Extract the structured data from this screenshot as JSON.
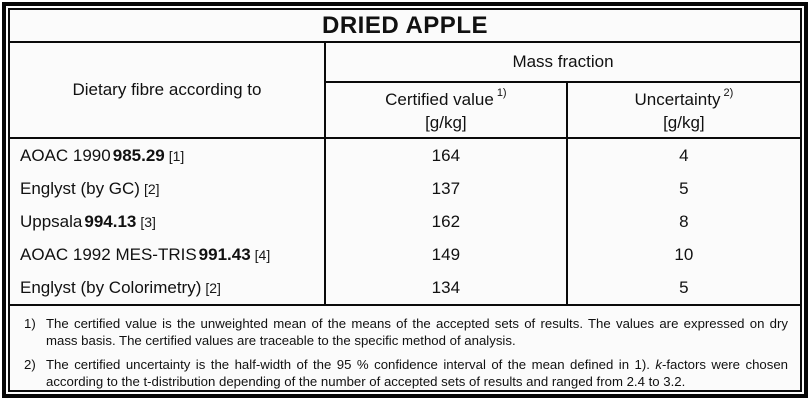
{
  "title": "DRIED APPLE",
  "table": {
    "col1_header": "Dietary fibre according to",
    "group_header": "Mass fraction",
    "col2_header": "Certified value",
    "col2_sup": "1)",
    "col2_unit": "[g/kg]",
    "col3_header": "Uncertainty",
    "col3_sup": "2)",
    "col3_unit": "[g/kg]",
    "rows": [
      {
        "method_prefix": "AOAC 1990",
        "method_bold": "985.29",
        "method_ref": "[1]",
        "certified_value": "164",
        "uncertainty": "4"
      },
      {
        "method_prefix": "Englyst (by GC)",
        "method_bold": "",
        "method_ref": "[2]",
        "certified_value": "137",
        "uncertainty": "5"
      },
      {
        "method_prefix": "Uppsala",
        "method_bold": "994.13",
        "method_ref": "[3]",
        "certified_value": "162",
        "uncertainty": "8"
      },
      {
        "method_prefix": "AOAC 1992 MES-TRIS",
        "method_bold": "991.43",
        "method_ref": "[4]",
        "certified_value": "149",
        "uncertainty": "10"
      },
      {
        "method_prefix": "Englyst (by Colorimetry)",
        "method_bold": "",
        "method_ref": "[2]",
        "certified_value": "134",
        "uncertainty": "5"
      }
    ]
  },
  "footnotes": [
    {
      "marker": "1)",
      "text": "The certified value is the unweighted mean of the means of the accepted sets of results. The values are expressed on dry mass basis. The certified values are traceable to the specific method of analysis."
    },
    {
      "marker": "2)",
      "text_before": "The certified uncertainty is the half-width of the 95 % confidence interval of the mean defined in 1). ",
      "italic_k": "k",
      "text_after": "-factors were chosen according to the t-distribution depending of the number of accepted sets of results and ranged from 2.4 to 3.2."
    }
  ],
  "colors": {
    "border": "#000000",
    "background": "#fbfbfb",
    "text": "#111111"
  }
}
